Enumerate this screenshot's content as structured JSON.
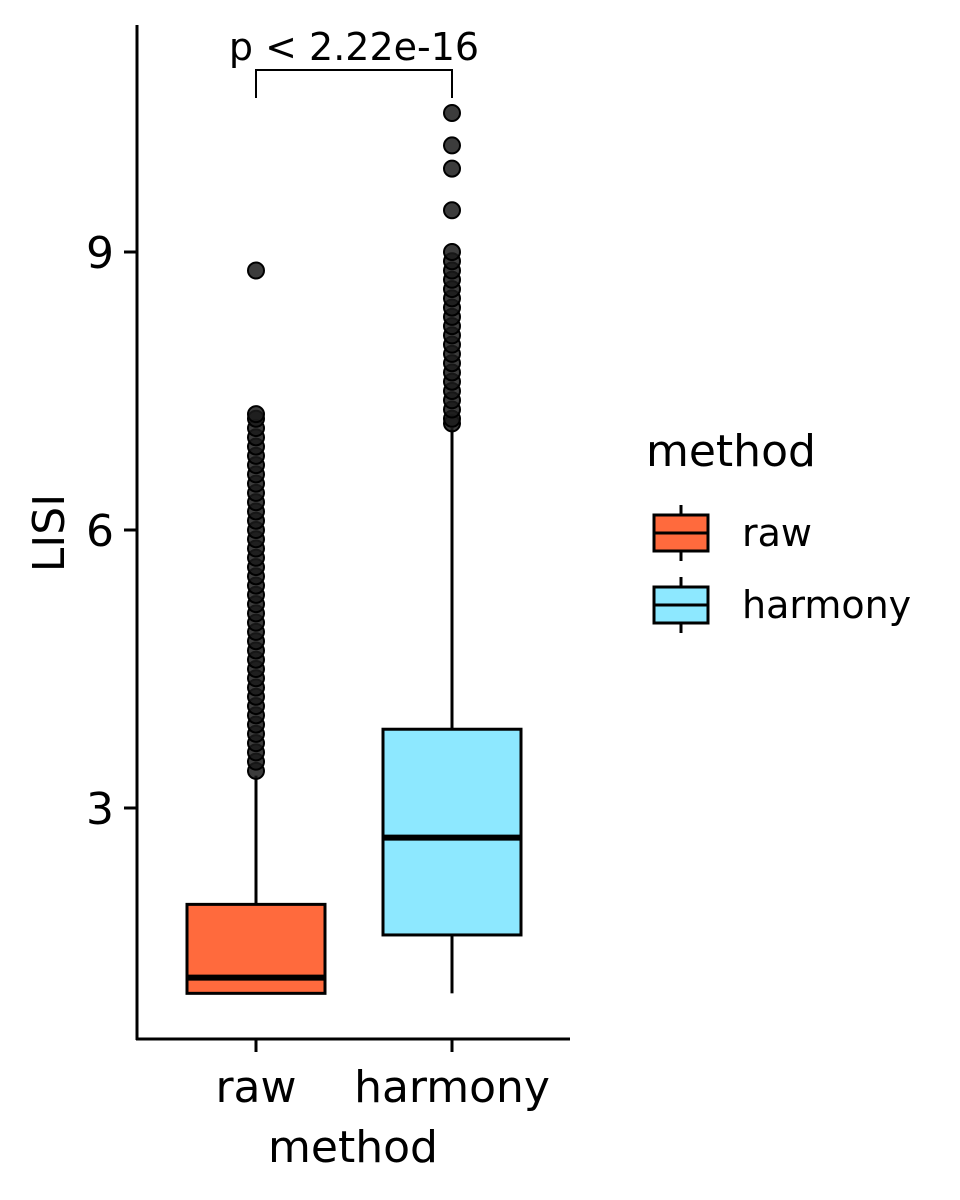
{
  "chart_data": {
    "type": "box",
    "xlabel": "method",
    "ylabel": "LISI",
    "categories": [
      "raw",
      "harmony"
    ],
    "y_ticks": [
      3,
      6,
      9
    ],
    "y_tick_labels": [
      "3",
      "6",
      "9"
    ],
    "ylim": [
      0.7,
      11.4
    ],
    "grid": false,
    "legend": {
      "title": "method",
      "placement": "right",
      "entries": [
        {
          "label": "raw",
          "color": "#FF6A3D"
        },
        {
          "label": "harmony",
          "color": "#8DE8FF"
        }
      ]
    },
    "annotation": {
      "text": "p < 2.22e-16",
      "from": "raw",
      "to": "harmony"
    },
    "series": [
      {
        "category": "raw",
        "color": "#FF6A3D",
        "min": 1.0,
        "q1": 1.0,
        "median": 1.17,
        "q3": 1.96,
        "whisker_low": 1.0,
        "whisker_high": 3.35,
        "outliers": [
          3.4,
          3.5,
          3.6,
          3.7,
          3.8,
          3.9,
          4.0,
          4.1,
          4.2,
          4.3,
          4.4,
          4.5,
          4.6,
          4.7,
          4.8,
          4.9,
          5.0,
          5.1,
          5.2,
          5.3,
          5.4,
          5.5,
          5.6,
          5.7,
          5.8,
          5.9,
          6.0,
          6.1,
          6.2,
          6.3,
          6.4,
          6.5,
          6.6,
          6.7,
          6.8,
          6.9,
          7.0,
          7.1,
          7.2,
          7.25,
          8.8
        ]
      },
      {
        "category": "harmony",
        "color": "#8DE8FF",
        "q1": 1.63,
        "median": 2.68,
        "q3": 3.85,
        "whisker_low": 1.0,
        "whisker_high": 7.1,
        "outliers": [
          7.15,
          7.2,
          7.3,
          7.4,
          7.5,
          7.6,
          7.7,
          7.8,
          7.9,
          8.0,
          8.1,
          8.2,
          8.3,
          8.4,
          8.5,
          8.6,
          8.7,
          8.8,
          8.9,
          9.0,
          9.45,
          9.9,
          10.15,
          10.5
        ]
      }
    ]
  }
}
